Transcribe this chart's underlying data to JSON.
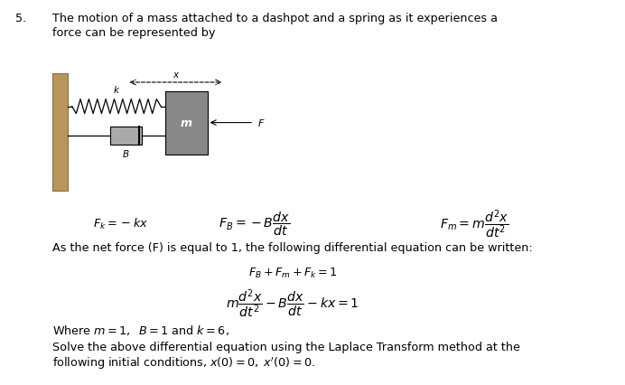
{
  "bg_color": "#ffffff",
  "question_number": "5.",
  "line1": "The motion of a mass attached to a dashpot and a spring as it experiences a",
  "line2": "force can be represented by",
  "eq_fk": "$F_k = -kx$",
  "eq_fb": "$F_B = -B\\dfrac{dx}{dt}$",
  "eq_fm": "$F_m = m\\dfrac{d^2x}{dt^2}$",
  "net_force_text": "As the net force (F) is equal to 1, the following differential equation can be written:",
  "eq_sum": "$F_B + F_m + F_k = 1$",
  "eq_ode": "$m\\dfrac{d^2x}{dt^2} - B\\dfrac{dx}{dt} - kx = 1$",
  "where_text": "Where $m = 1,\\;\\; B = 1$ and $k = 6,$",
  "solve_line1": "Solve the above differential equation using the Laplace Transform method at the",
  "solve_line2": "following initial conditions, $x(0) = 0,\\; x'(0) = 0.$",
  "wall_color": "#b8955a",
  "wall_edge": "#8b7040",
  "mass_color": "#888888",
  "spring_label": "k",
  "dashpot_label": "B",
  "mass_label": "m",
  "force_label": "F",
  "disp_label": "x"
}
